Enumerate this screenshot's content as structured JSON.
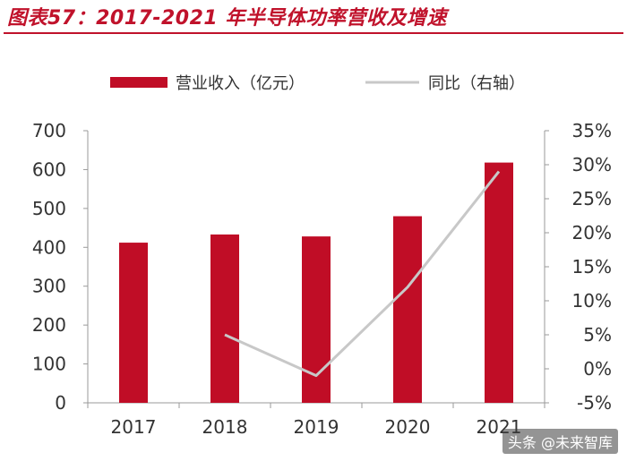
{
  "header": {
    "title": "图表57：2017-2021 年半导体功率营收及增速"
  },
  "watermark": "头条 @未来智库",
  "colors": {
    "bar": "#c00d26",
    "line": "#c8c8c8",
    "title": "#c0122b",
    "axis": "#9a9a9a"
  },
  "chart_data": {
    "type": "bar",
    "title": "2017-2021 年半导体功率营收及增速",
    "categories": [
      "2017",
      "2018",
      "2019",
      "2020",
      "2021"
    ],
    "series": [
      {
        "name": "营业收入（亿元）",
        "type": "bar",
        "axis": "left",
        "values": [
          412,
          433,
          428,
          480,
          618
        ]
      },
      {
        "name": "同比（右轴）",
        "type": "line",
        "axis": "right",
        "values": [
          null,
          5.0,
          -1.0,
          12.0,
          29.0
        ]
      }
    ],
    "left_axis": {
      "min": 0,
      "max": 700,
      "ticks": [
        0,
        100,
        200,
        300,
        400,
        500,
        600,
        700
      ],
      "tick_labels": [
        "0",
        "100",
        "200",
        "300",
        "400",
        "500",
        "600",
        "700"
      ]
    },
    "right_axis": {
      "min": -5,
      "max": 35,
      "ticks": [
        -5,
        0,
        5,
        10,
        15,
        20,
        25,
        30,
        35
      ],
      "tick_labels": [
        "-5%",
        "0%",
        "5%",
        "10%",
        "15%",
        "20%",
        "25%",
        "30%",
        "35%"
      ]
    },
    "legend": [
      "营业收入（亿元）",
      "同比（右轴）"
    ],
    "legend_position": "top",
    "grid": false
  }
}
